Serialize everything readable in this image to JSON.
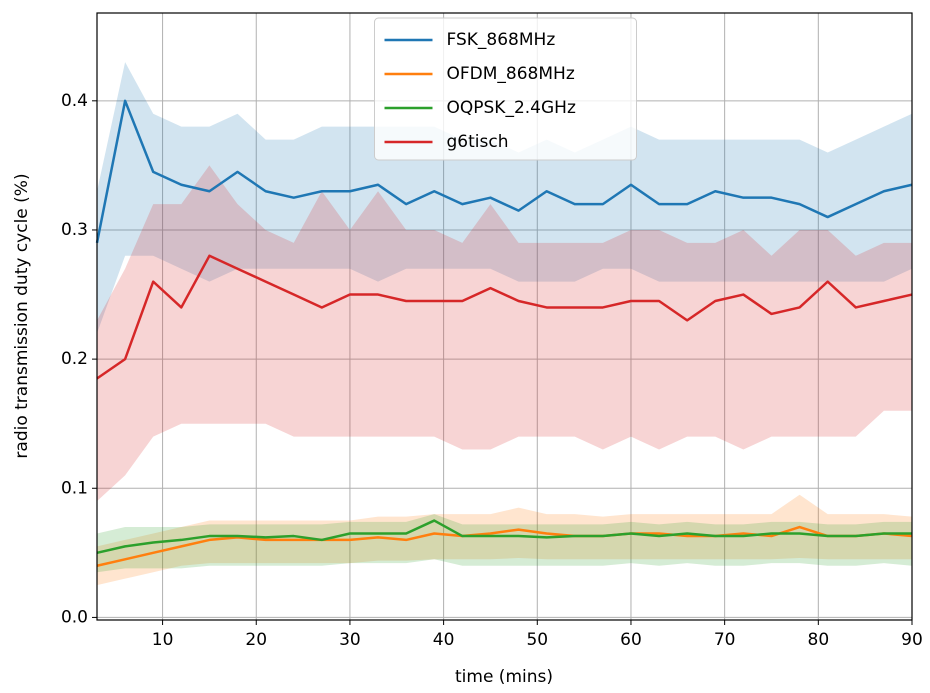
{
  "chart_data": {
    "type": "line",
    "xlabel": "time (mins)",
    "ylabel": "radio transmission duty cycle (%)",
    "x": [
      3,
      6,
      9,
      12,
      15,
      18,
      21,
      24,
      27,
      30,
      33,
      36,
      39,
      42,
      45,
      48,
      51,
      54,
      57,
      60,
      63,
      66,
      69,
      72,
      75,
      78,
      81,
      84,
      87,
      90
    ],
    "series": [
      {
        "name": "FSK_868MHz",
        "color": "#1f77b4",
        "values": [
          0.29,
          0.4,
          0.345,
          0.335,
          0.33,
          0.345,
          0.33,
          0.325,
          0.33,
          0.33,
          0.335,
          0.32,
          0.33,
          0.32,
          0.325,
          0.315,
          0.33,
          0.32,
          0.32,
          0.335,
          0.32,
          0.32,
          0.33,
          0.325,
          0.325,
          0.32,
          0.31,
          0.32,
          0.33,
          0.335
        ],
        "upper": [
          0.33,
          0.43,
          0.39,
          0.38,
          0.38,
          0.39,
          0.37,
          0.37,
          0.38,
          0.38,
          0.38,
          0.38,
          0.38,
          0.37,
          0.37,
          0.36,
          0.37,
          0.36,
          0.37,
          0.38,
          0.37,
          0.37,
          0.37,
          0.37,
          0.37,
          0.37,
          0.36,
          0.37,
          0.38,
          0.39
        ],
        "lower": [
          0.22,
          0.28,
          0.28,
          0.27,
          0.26,
          0.27,
          0.27,
          0.27,
          0.27,
          0.27,
          0.26,
          0.27,
          0.27,
          0.27,
          0.27,
          0.26,
          0.26,
          0.26,
          0.27,
          0.27,
          0.26,
          0.26,
          0.26,
          0.26,
          0.26,
          0.26,
          0.26,
          0.26,
          0.26,
          0.27
        ]
      },
      {
        "name": "OFDM_868MHz",
        "color": "#ff7f0e",
        "values": [
          0.04,
          0.045,
          0.05,
          0.055,
          0.06,
          0.062,
          0.06,
          0.06,
          0.06,
          0.06,
          0.062,
          0.06,
          0.065,
          0.063,
          0.065,
          0.068,
          0.065,
          0.063,
          0.063,
          0.065,
          0.065,
          0.063,
          0.063,
          0.065,
          0.063,
          0.07,
          0.063,
          0.063,
          0.065,
          0.063
        ],
        "upper": [
          0.055,
          0.06,
          0.065,
          0.07,
          0.075,
          0.075,
          0.075,
          0.075,
          0.075,
          0.075,
          0.078,
          0.078,
          0.08,
          0.08,
          0.08,
          0.085,
          0.08,
          0.08,
          0.078,
          0.08,
          0.08,
          0.08,
          0.08,
          0.08,
          0.08,
          0.095,
          0.08,
          0.08,
          0.08,
          0.078
        ],
        "lower": [
          0.025,
          0.03,
          0.035,
          0.04,
          0.042,
          0.042,
          0.042,
          0.042,
          0.042,
          0.042,
          0.044,
          0.044,
          0.045,
          0.045,
          0.045,
          0.046,
          0.045,
          0.045,
          0.045,
          0.045,
          0.045,
          0.045,
          0.045,
          0.045,
          0.045,
          0.046,
          0.045,
          0.045,
          0.045,
          0.045
        ]
      },
      {
        "name": "OQPSK_2.4GHz",
        "color": "#2ca02c",
        "values": [
          0.05,
          0.055,
          0.058,
          0.06,
          0.063,
          0.063,
          0.062,
          0.063,
          0.06,
          0.065,
          0.065,
          0.065,
          0.075,
          0.063,
          0.063,
          0.063,
          0.062,
          0.063,
          0.063,
          0.065,
          0.063,
          0.065,
          0.063,
          0.063,
          0.065,
          0.065,
          0.063,
          0.063,
          0.065,
          0.065
        ],
        "upper": [
          0.065,
          0.07,
          0.07,
          0.07,
          0.072,
          0.072,
          0.072,
          0.072,
          0.072,
          0.074,
          0.074,
          0.074,
          0.08,
          0.072,
          0.072,
          0.072,
          0.072,
          0.072,
          0.072,
          0.074,
          0.072,
          0.074,
          0.072,
          0.072,
          0.074,
          0.074,
          0.072,
          0.072,
          0.074,
          0.074
        ],
        "lower": [
          0.035,
          0.038,
          0.038,
          0.038,
          0.04,
          0.04,
          0.04,
          0.04,
          0.04,
          0.042,
          0.042,
          0.042,
          0.045,
          0.04,
          0.04,
          0.04,
          0.04,
          0.04,
          0.04,
          0.042,
          0.04,
          0.042,
          0.04,
          0.04,
          0.042,
          0.042,
          0.04,
          0.04,
          0.042,
          0.04
        ]
      },
      {
        "name": "g6tisch",
        "color": "#d62728",
        "values": [
          0.185,
          0.2,
          0.26,
          0.24,
          0.28,
          0.27,
          0.26,
          0.25,
          0.24,
          0.25,
          0.25,
          0.245,
          0.245,
          0.245,
          0.255,
          0.245,
          0.24,
          0.24,
          0.24,
          0.245,
          0.245,
          0.23,
          0.245,
          0.25,
          0.235,
          0.24,
          0.26,
          0.24,
          0.245,
          0.25
        ],
        "upper": [
          0.23,
          0.27,
          0.32,
          0.32,
          0.35,
          0.32,
          0.3,
          0.29,
          0.33,
          0.3,
          0.33,
          0.3,
          0.3,
          0.29,
          0.32,
          0.29,
          0.29,
          0.29,
          0.29,
          0.3,
          0.3,
          0.29,
          0.29,
          0.3,
          0.28,
          0.3,
          0.3,
          0.28,
          0.29,
          0.29
        ],
        "lower": [
          0.09,
          0.11,
          0.14,
          0.15,
          0.15,
          0.15,
          0.15,
          0.14,
          0.14,
          0.14,
          0.14,
          0.14,
          0.14,
          0.13,
          0.13,
          0.14,
          0.14,
          0.14,
          0.13,
          0.14,
          0.13,
          0.14,
          0.14,
          0.13,
          0.14,
          0.14,
          0.14,
          0.14,
          0.16,
          0.16
        ]
      }
    ],
    "xlim": [
      3,
      90
    ],
    "xticks": [
      10,
      20,
      30,
      40,
      50,
      60,
      70,
      80,
      90
    ],
    "ylim": [
      -0.002,
      0.468
    ],
    "yticks": [
      {
        "value": 0,
        "label": "0.0"
      },
      0.1,
      0.2,
      0.3,
      0.4
    ],
    "grid": true,
    "legend": "upper center",
    "band_opacity": 0.2
  }
}
